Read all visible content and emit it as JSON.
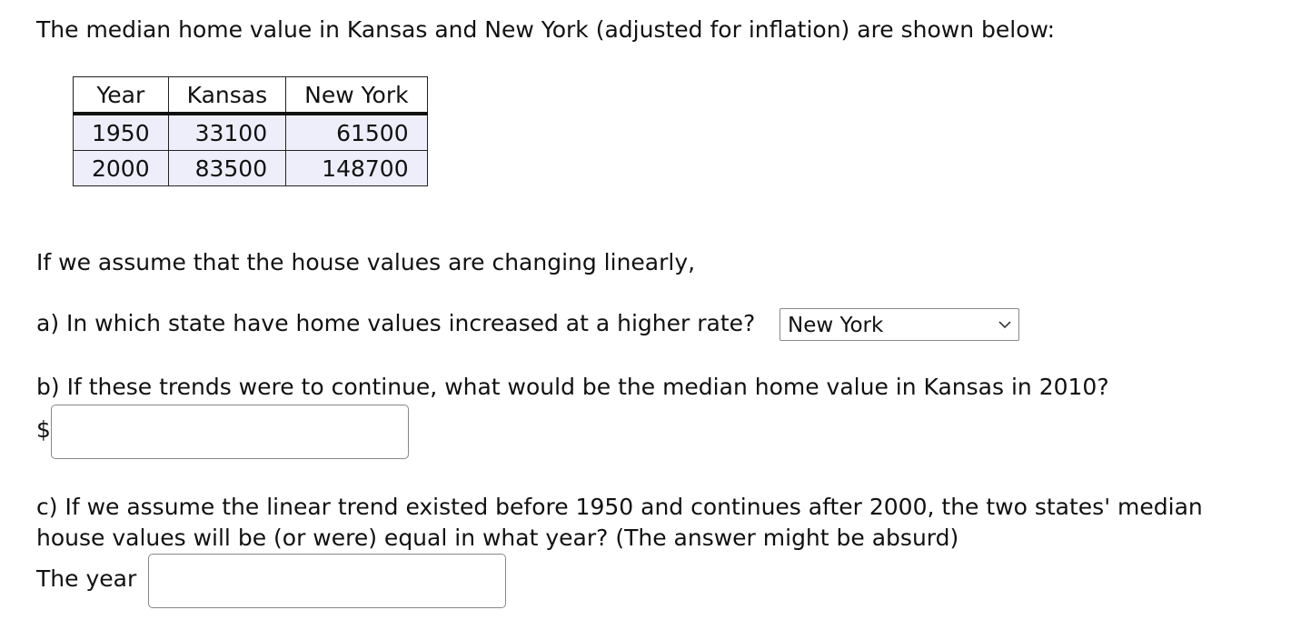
{
  "intro": "The median home value in Kansas and New York (adjusted for inflation) are shown below:",
  "table": {
    "header": [
      "Year",
      "Kansas",
      "New York"
    ],
    "rows": [
      [
        "1950",
        "33100",
        "61500"
      ],
      [
        "2000",
        "83500",
        "148700"
      ]
    ]
  },
  "assumption": "If we assume that the house values are changing linearly,",
  "question_a": {
    "text": "a) In which state have home values increased at a higher rate?",
    "selected": "New York"
  },
  "question_b": {
    "text": "b) If these trends were to continue, what would be the median home value in Kansas in 2010?",
    "prefix": "$"
  },
  "question_c": {
    "text": "c) If we assume the linear trend existed before 1950 and continues after 2000, the two states' median house values will be (or were) equal in what year? (The answer might be absurd)",
    "prefix": "The year"
  }
}
